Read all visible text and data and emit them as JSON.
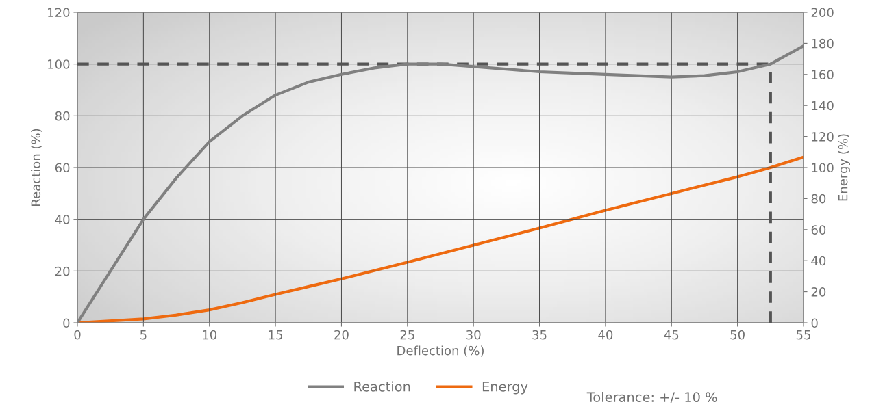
{
  "chart_data": {
    "type": "line",
    "xlabel": "Deflection (%)",
    "ylabel": "Reaction (%)",
    "y2label": "Energy (%)",
    "x": [
      0,
      2.5,
      5,
      7.5,
      10,
      12.5,
      15,
      17.5,
      20,
      22.5,
      25,
      27.5,
      30,
      35,
      40,
      45,
      47.5,
      50,
      52.5,
      55
    ],
    "series": [
      {
        "name": "Reaction",
        "color": "#808080",
        "values": [
          0,
          20,
          40,
          56,
          70,
          80,
          88,
          93,
          96,
          98.5,
          100,
          100,
          99,
          97,
          96,
          95,
          95.5,
          97,
          100,
          107
        ]
      },
      {
        "name": "Energy",
        "color": "#ee6a10",
        "axis": "y2",
        "x": [
          0,
          5,
          7.5,
          10,
          12.5,
          15,
          17.5,
          20,
          25,
          30,
          35,
          40,
          45,
          50,
          52.5,
          55
        ],
        "values": [
          0,
          2.5,
          5,
          8.3,
          13,
          18.3,
          23.3,
          28.3,
          39,
          50,
          61,
          72.5,
          83.3,
          94,
          100,
          106.7
        ]
      }
    ],
    "xlim": [
      0,
      55
    ],
    "xticks": [
      0,
      5,
      10,
      15,
      20,
      25,
      30,
      35,
      40,
      45,
      50,
      55
    ],
    "ylim": [
      0,
      120
    ],
    "yticks": [
      0,
      20,
      40,
      60,
      80,
      100,
      120
    ],
    "y2lim": [
      0,
      200
    ],
    "y2ticks": [
      0,
      20,
      40,
      60,
      80,
      100,
      120,
      140,
      160,
      180,
      200
    ],
    "ref_lines": [
      {
        "axis": "y",
        "value": 100,
        "color": "#555555",
        "line_style": "dashed"
      },
      {
        "axis": "x",
        "value": 52.5,
        "color": "#555555",
        "line_style": "dashed"
      }
    ],
    "grid": true,
    "legend": "bottom",
    "annotations": [
      "Tolerance: +/- 10 %"
    ]
  }
}
